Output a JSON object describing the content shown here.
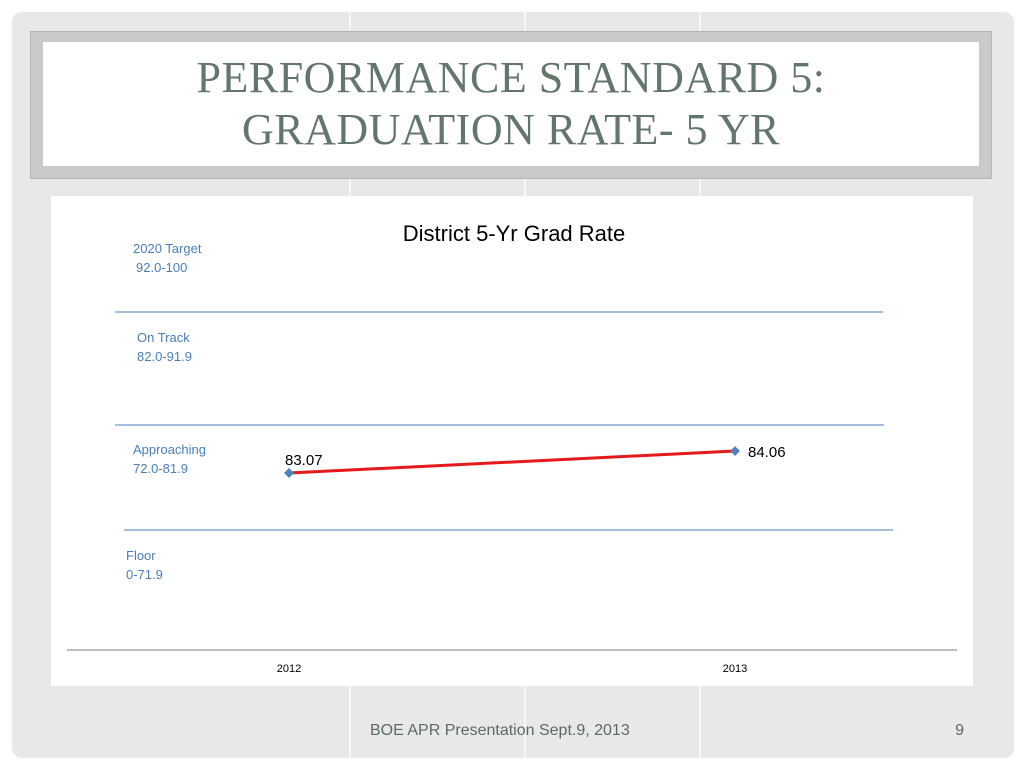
{
  "slide": {
    "title_line1": "PERFORMANCE STANDARD 5:",
    "title_line2": "GRADUATION RATE- 5 YR",
    "footer": "BOE APR Presentation Sept.9, 2013",
    "page_number": "9"
  },
  "colors": {
    "title": "#62776a",
    "band_lines": "#4a7ebb",
    "series_line": "#e3191b",
    "marker": "#4f81bd",
    "background": "#e8e8e8"
  },
  "chart_data": {
    "type": "line",
    "title": "District 5-Yr Grad Rate",
    "categories": [
      "2012",
      "2013"
    ],
    "series": [
      {
        "values": [
          83.07,
          84.06
        ],
        "data_labels": [
          "83.07",
          "84.06"
        ]
      }
    ],
    "bands": [
      {
        "label_line1": "2020 Target",
        "label_line2": "92.0-100"
      },
      {
        "label_line1": "On Track",
        "label_line2": "82.0-91.9"
      },
      {
        "label_line1": "Approaching",
        "label_line2": "72.0-81.9"
      },
      {
        "label_line1": "Floor",
        "label_line2": "0-71.9"
      }
    ],
    "grid": false,
    "legend": "none"
  }
}
